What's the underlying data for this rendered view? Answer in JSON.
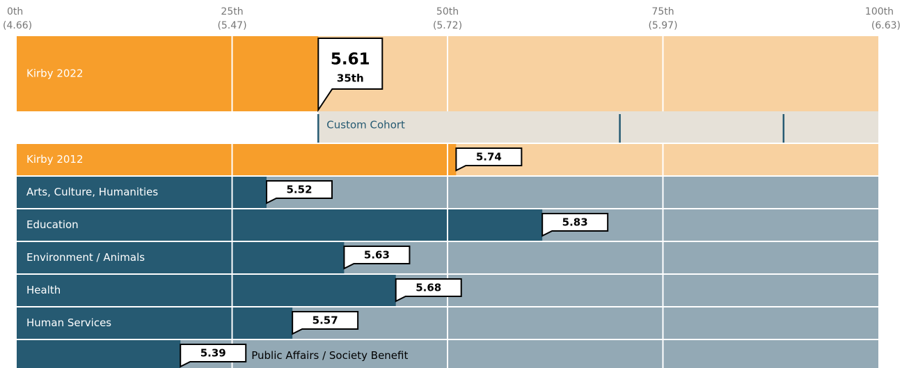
{
  "chart_data": {
    "type": "percentile_bar",
    "xlim": [
      0,
      100
    ],
    "xticks": [
      {
        "value": 0,
        "label": "0th",
        "sublabel": "(4.66)"
      },
      {
        "value": 25,
        "label": "25th",
        "sublabel": "(5.47)"
      },
      {
        "value": 50,
        "label": "50th",
        "sublabel": "(5.72)"
      },
      {
        "value": 75,
        "label": "75th",
        "sublabel": "(5.97)"
      },
      {
        "value": 100,
        "label": "100th",
        "sublabel": "(6.63)"
      }
    ],
    "categories": [
      "Kirby 2022",
      "Kirby 2012",
      "Arts, Culture, Humanities",
      "Education",
      "Environment / Animals",
      "Health",
      "Human Services",
      "Public Affairs / Society Benefit"
    ],
    "groups": [
      "kirby",
      "kirby",
      "sector",
      "sector",
      "sector",
      "sector",
      "sector",
      "sector"
    ],
    "values": [
      35,
      51,
      29,
      61,
      38,
      44,
      32,
      19
    ],
    "scores": [
      5.61,
      5.74,
      5.52,
      5.83,
      5.63,
      5.68,
      5.57,
      5.39
    ],
    "percentile_label": "35th",
    "colors": {
      "kirby": [
        "#f79e2b",
        "#f8d1a0"
      ],
      "sector": [
        "#265a72",
        "#93a9b5"
      ]
    },
    "cohort": {
      "name": "Custom Cohort",
      "low": 35,
      "median": 70,
      "high": 89,
      "color": "#e6e1d8",
      "line_color": "#265a72"
    }
  }
}
